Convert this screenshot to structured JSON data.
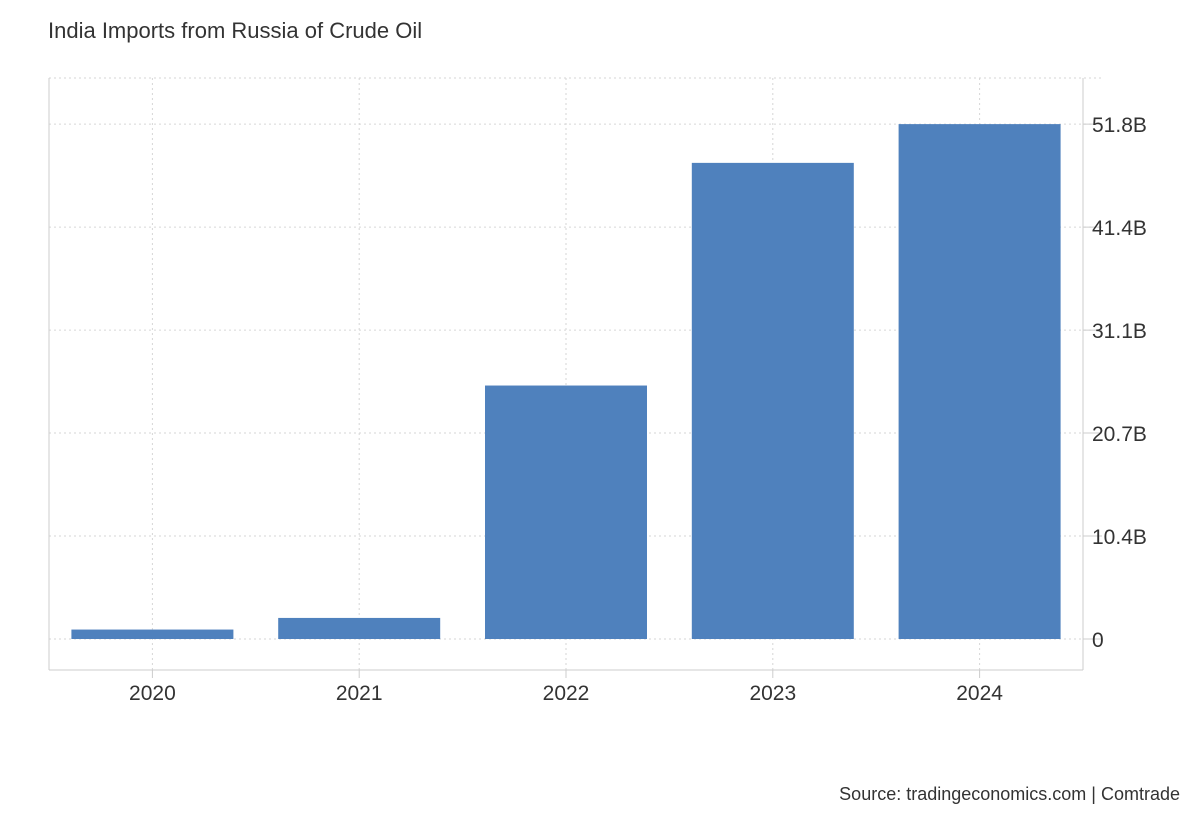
{
  "chart_data": {
    "type": "bar",
    "title": "India Imports from Russia of Crude Oil",
    "categories": [
      "2020",
      "2021",
      "2022",
      "2023",
      "2024"
    ],
    "values": [
      0.95,
      2.12,
      25.5,
      47.9,
      51.8
    ],
    "value_unit": "B",
    "yticks": [
      {
        "value": 0,
        "label": "0"
      },
      {
        "value": 10.36,
        "label": "10.4B"
      },
      {
        "value": 20.72,
        "label": "20.7B"
      },
      {
        "value": 31.08,
        "label": "31.1B"
      },
      {
        "value": 41.44,
        "label": "41.4B"
      },
      {
        "value": 51.8,
        "label": "51.8B"
      }
    ],
    "ylim": [
      -3,
      56.5
    ],
    "y_axis_side": "right",
    "grid": true,
    "bar_color": "#4f81bd",
    "source": "Source: tradingeconomics.com | Comtrade"
  }
}
